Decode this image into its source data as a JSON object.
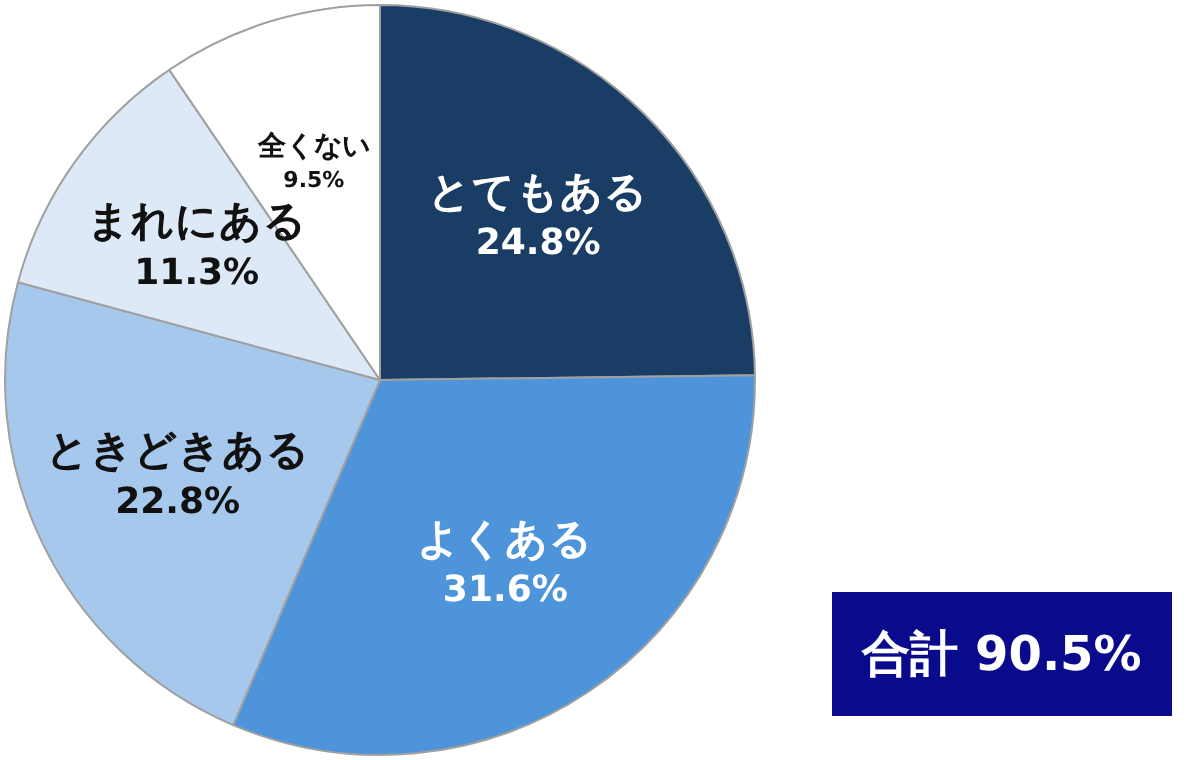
{
  "chart_data": {
    "type": "pie",
    "categories": [
      "とてもある",
      "よくある",
      "ときどきある",
      "まれにある",
      "全くない"
    ],
    "values": [
      24.8,
      31.6,
      22.8,
      11.3,
      9.5
    ],
    "value_labels": [
      "24.8%",
      "31.6%",
      "22.8%",
      "11.3%",
      "9.5%"
    ],
    "colors": [
      "#1a3d66",
      "#4d94db",
      "#a6c8ec",
      "#dde9f6",
      "#ffffff"
    ],
    "legend": false,
    "annotations": [
      "合計 90.5%"
    ]
  }
}
